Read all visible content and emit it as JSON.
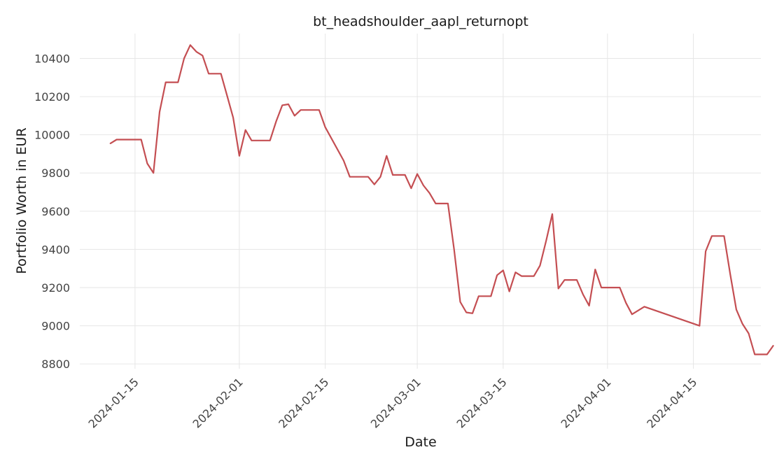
{
  "chart_data": {
    "type": "line",
    "title": "bt_headshoulder_aapl_returnopt",
    "xlabel": "Date",
    "ylabel": "Portfolio Worth in EUR",
    "grid": true,
    "x_ticks": [
      "2024-01-15",
      "2024-02-01",
      "2024-02-15",
      "2024-03-01",
      "2024-03-15",
      "2024-04-01",
      "2024-04-15"
    ],
    "y_ticks": [
      8800,
      9000,
      9200,
      9400,
      9600,
      9800,
      10000,
      10200,
      10400
    ],
    "xlim": [
      "2024-01-06",
      "2024-04-26"
    ],
    "ylim": [
      8775,
      10530
    ],
    "series": [
      {
        "color": "#c44e52",
        "points": [
          [
            "2024-01-11",
            9955
          ],
          [
            "2024-01-12",
            9975
          ],
          [
            "2024-01-16",
            9975
          ],
          [
            "2024-01-17",
            9850
          ],
          [
            "2024-01-18",
            9800
          ],
          [
            "2024-01-19",
            10120
          ],
          [
            "2024-01-20",
            10275
          ],
          [
            "2024-01-22",
            10275
          ],
          [
            "2024-01-23",
            10400
          ],
          [
            "2024-01-24",
            10470
          ],
          [
            "2024-01-25",
            10435
          ],
          [
            "2024-01-26",
            10415
          ],
          [
            "2024-01-27",
            10320
          ],
          [
            "2024-01-29",
            10320
          ],
          [
            "2024-01-30",
            10205
          ],
          [
            "2024-01-31",
            10090
          ],
          [
            "2024-02-01",
            9890
          ],
          [
            "2024-02-02",
            10025
          ],
          [
            "2024-02-03",
            9970
          ],
          [
            "2024-02-06",
            9970
          ],
          [
            "2024-02-07",
            10070
          ],
          [
            "2024-02-08",
            10155
          ],
          [
            "2024-02-09",
            10160
          ],
          [
            "2024-02-10",
            10100
          ],
          [
            "2024-02-11",
            10130
          ],
          [
            "2024-02-14",
            10130
          ],
          [
            "2024-02-15",
            10040
          ],
          [
            "2024-02-18",
            9865
          ],
          [
            "2024-02-19",
            9780
          ],
          [
            "2024-02-22",
            9780
          ],
          [
            "2024-02-23",
            9740
          ],
          [
            "2024-02-24",
            9780
          ],
          [
            "2024-02-25",
            9890
          ],
          [
            "2024-02-26",
            9790
          ],
          [
            "2024-02-28",
            9790
          ],
          [
            "2024-02-29",
            9720
          ],
          [
            "2024-03-01",
            9795
          ],
          [
            "2024-03-02",
            9735
          ],
          [
            "2024-03-03",
            9695
          ],
          [
            "2024-03-04",
            9640
          ],
          [
            "2024-03-06",
            9640
          ],
          [
            "2024-03-07",
            9400
          ],
          [
            "2024-03-08",
            9125
          ],
          [
            "2024-03-09",
            9070
          ],
          [
            "2024-03-10",
            9065
          ],
          [
            "2024-03-11",
            9155
          ],
          [
            "2024-03-13",
            9155
          ],
          [
            "2024-03-14",
            9265
          ],
          [
            "2024-03-15",
            9290
          ],
          [
            "2024-03-16",
            9180
          ],
          [
            "2024-03-17",
            9280
          ],
          [
            "2024-03-18",
            9260
          ],
          [
            "2024-03-20",
            9260
          ],
          [
            "2024-03-21",
            9315
          ],
          [
            "2024-03-22",
            9445
          ],
          [
            "2024-03-23",
            9585
          ],
          [
            "2024-03-24",
            9195
          ],
          [
            "2024-03-25",
            9240
          ],
          [
            "2024-03-27",
            9240
          ],
          [
            "2024-03-28",
            9165
          ],
          [
            "2024-03-29",
            9105
          ],
          [
            "2024-03-30",
            9295
          ],
          [
            "2024-03-31",
            9200
          ],
          [
            "2024-04-03",
            9200
          ],
          [
            "2024-04-04",
            9120
          ],
          [
            "2024-04-05",
            9060
          ],
          [
            "2024-04-07",
            9100
          ],
          [
            "2024-04-16",
            9000
          ],
          [
            "2024-04-17",
            9390
          ],
          [
            "2024-04-18",
            9470
          ],
          [
            "2024-04-20",
            9470
          ],
          [
            "2024-04-21",
            9270
          ],
          [
            "2024-04-22",
            9085
          ],
          [
            "2024-04-23",
            9010
          ],
          [
            "2024-04-24",
            8960
          ],
          [
            "2024-04-25",
            8850
          ],
          [
            "2024-04-27",
            8850
          ],
          [
            "2024-04-28",
            8895
          ]
        ]
      }
    ]
  }
}
